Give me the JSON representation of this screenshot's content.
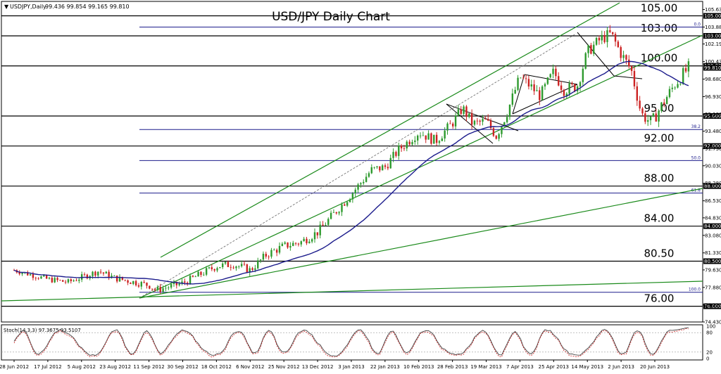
{
  "header": {
    "symbol_line": "USDJPY,Daily",
    "ohlc": "99.436 99.854 99.165 99.810"
  },
  "chart_data": {
    "type": "candlestick",
    "title": "USD/JPY Daily Chart",
    "ylim": [
      74.43,
      106.3
    ],
    "x_labels": [
      "28 Jun 2012",
      "17 Jul 2012",
      "5 Aug 2012",
      "23 Aug 2012",
      "11 Sep 2012",
      "30 Sep 2012",
      "18 Oct 2012",
      "6 Nov 2012",
      "25 Nov 2012",
      "13 Dec 2012",
      "3 Jan 2013",
      "22 Jan 2013",
      "10 Feb 2013",
      "28 Feb 2013",
      "19 Mar 2013",
      "7 Apr 2013",
      "25 Apr 2013",
      "14 May 2013",
      "2 Jun 2013",
      "20 Jun 2013"
    ],
    "y_ticks": [
      "105.630",
      "103.880",
      "102.190",
      "100.430",
      "98.680",
      "96.930",
      "95.180",
      "93.480",
      "91.730",
      "90.030",
      "88.280",
      "86.530",
      "84.830",
      "83.080",
      "81.330",
      "79.630",
      "77.880",
      "76.130",
      "74.430"
    ],
    "horizontal_levels": [
      {
        "value": 105.0,
        "label": "105.00",
        "tag": "105.000"
      },
      {
        "value": 103.0,
        "label": "103.00",
        "tag": "103.000"
      },
      {
        "value": 100.0,
        "label": "100.00",
        "tag": "100.000"
      },
      {
        "value": 95.0,
        "label": "95.00",
        "tag": "95.000"
      },
      {
        "value": 92.0,
        "label": "92.00",
        "tag": "92.000"
      },
      {
        "value": 88.0,
        "label": "88.00",
        "tag": "88.000"
      },
      {
        "value": 84.0,
        "label": "84.00",
        "tag": "84.000"
      },
      {
        "value": 80.5,
        "label": "80.50",
        "tag": "80.500"
      },
      {
        "value": 76.0,
        "label": "76.00",
        "tag": "76.000"
      }
    ],
    "fib_levels": [
      {
        "value": 103.88,
        "label": "0.0"
      },
      {
        "value": 93.65,
        "label": "38.2"
      },
      {
        "value": 90.55,
        "label": "50.0"
      },
      {
        "value": 87.3,
        "label": "61.8"
      },
      {
        "value": 77.4,
        "label": "100.0"
      }
    ],
    "last_price_tag": "99.810",
    "last_price": 99.81,
    "stochastic": {
      "label": "Stoch(14,3,3) 97.3675 93.5107",
      "ticks": [
        "100",
        "80",
        "20",
        "0"
      ]
    },
    "colors": {
      "up": "#2e9a2e",
      "down": "#cc2222",
      "channel": "#1a8a1a",
      "ma": "#1c1c8c",
      "fib": "#1c1c8c",
      "level": "#000000",
      "stoch_main": "#444444",
      "stoch_signal": "#cc2222"
    }
  }
}
